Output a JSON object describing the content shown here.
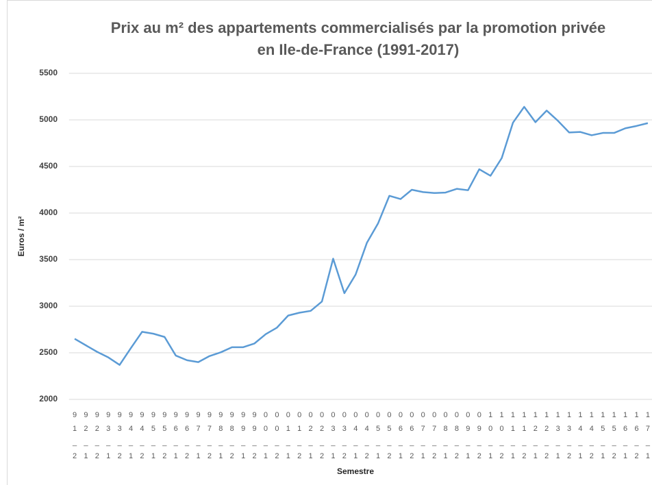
{
  "chart_data": {
    "type": "line",
    "title": [
      "Prix au m² des appartements commercialisés par la promotion privée",
      "en Ile-de-France (1991-2017)"
    ],
    "x_label": "Semestre",
    "y_label": "Euros / m²",
    "categories": [
      "91_2",
      "92_1",
      "92_2",
      "93_1",
      "93_2",
      "94_1",
      "94_2",
      "95_1",
      "95_2",
      "96_1",
      "96_2",
      "97_1",
      "97_2",
      "98_1",
      "98_2",
      "99_1",
      "99_2",
      "00_1",
      "00_2",
      "01_1",
      "01_2",
      "02_1",
      "02_2",
      "03_1",
      "03_2",
      "04_1",
      "04_2",
      "05_1",
      "05_2",
      "06_1",
      "06_2",
      "07_1",
      "07_2",
      "08_1",
      "08_2",
      "09_1",
      "09_2",
      "10_1",
      "10_2",
      "11_1",
      "11_2",
      "12_1",
      "12_2",
      "13_1",
      "13_2",
      "14_1",
      "14_2",
      "15_1",
      "15_2",
      "16_1",
      "16_2",
      "17_1"
    ],
    "series": [
      {
        "name": "Prix au m²",
        "color": "#5b9bd5",
        "values": [
          2650,
          2580,
          2510,
          2450,
          2370,
          2550,
          2725,
          2705,
          2670,
          2470,
          2420,
          2400,
          2465,
          2505,
          2560,
          2560,
          2600,
          2700,
          2770,
          2900,
          2930,
          2950,
          3050,
          3510,
          3140,
          3340,
          3680,
          3890,
          4185,
          4150,
          4250,
          4225,
          4215,
          4220,
          4260,
          4245,
          4470,
          4400,
          4590,
          4970,
          5140,
          4975,
          5100,
          4990,
          4865,
          4870,
          4835,
          4860,
          4860,
          4910,
          4935,
          4965
        ]
      }
    ],
    "ylim": [
      2000,
      5500
    ],
    "yticks": [
      2000,
      2500,
      3000,
      3500,
      4000,
      4500,
      5000,
      5500
    ],
    "grid": true
  }
}
